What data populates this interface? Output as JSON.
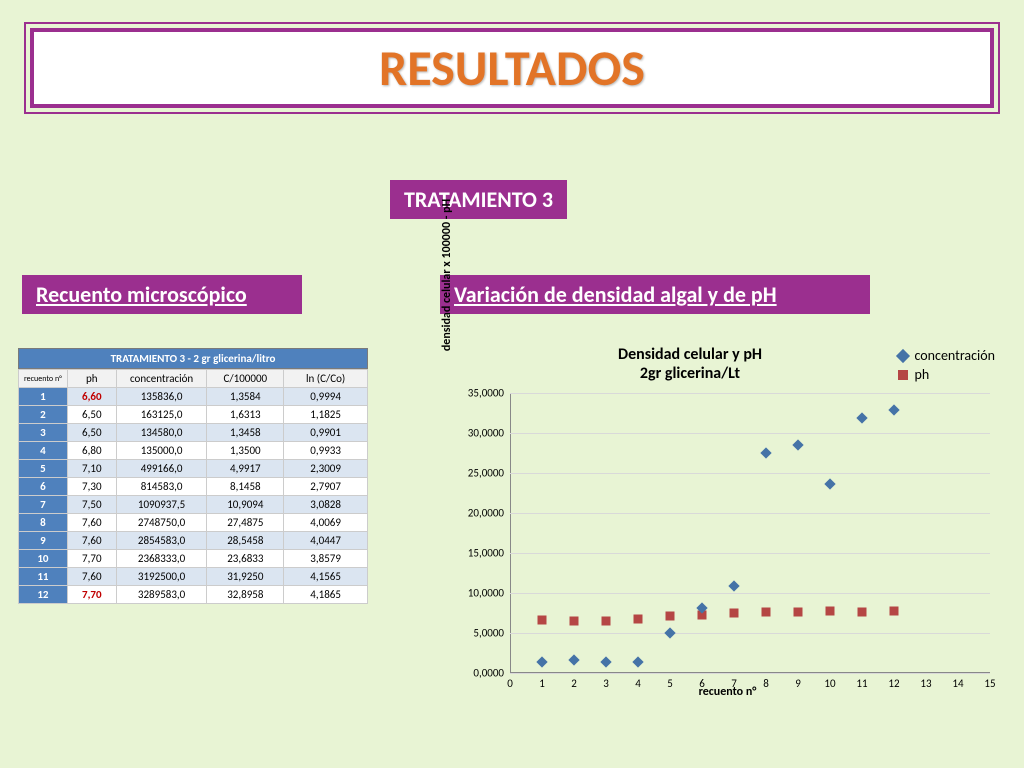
{
  "title": "RESULTADOS",
  "treatment_badge": "TRATAMIENTO 3",
  "section_left": "Recuento microscópico",
  "section_right": "Variación de densidad algal y de pH",
  "table": {
    "title": "TRATAMIENTO 3 - 2 gr glicerina/litro",
    "headers": [
      "recuento n°",
      "ph",
      "concentración",
      "C/100000",
      "ln (C/Co)"
    ],
    "rows": [
      {
        "n": "1",
        "ph": "6,60",
        "ph_red": true,
        "conc": "135836,0",
        "c": "1,3584",
        "ln": "0,9994"
      },
      {
        "n": "2",
        "ph": "6,50",
        "ph_red": false,
        "conc": "163125,0",
        "c": "1,6313",
        "ln": "1,1825"
      },
      {
        "n": "3",
        "ph": "6,50",
        "ph_red": false,
        "conc": "134580,0",
        "c": "1,3458",
        "ln": "0,9901"
      },
      {
        "n": "4",
        "ph": "6,80",
        "ph_red": false,
        "conc": "135000,0",
        "c": "1,3500",
        "ln": "0,9933"
      },
      {
        "n": "5",
        "ph": "7,10",
        "ph_red": false,
        "conc": "499166,0",
        "c": "4,9917",
        "ln": "2,3009"
      },
      {
        "n": "6",
        "ph": "7,30",
        "ph_red": false,
        "conc": "814583,0",
        "c": "8,1458",
        "ln": "2,7907"
      },
      {
        "n": "7",
        "ph": "7,50",
        "ph_red": false,
        "conc": "1090937,5",
        "c": "10,9094",
        "ln": "3,0828"
      },
      {
        "n": "8",
        "ph": "7,60",
        "ph_red": false,
        "conc": "2748750,0",
        "c": "27,4875",
        "ln": "4,0069"
      },
      {
        "n": "9",
        "ph": "7,60",
        "ph_red": false,
        "conc": "2854583,0",
        "c": "28,5458",
        "ln": "4,0447"
      },
      {
        "n": "10",
        "ph": "7,70",
        "ph_red": false,
        "conc": "2368333,0",
        "c": "23,6833",
        "ln": "3,8579"
      },
      {
        "n": "11",
        "ph": "7,60",
        "ph_red": false,
        "conc": "3192500,0",
        "c": "31,9250",
        "ln": "4,1565"
      },
      {
        "n": "12",
        "ph": "7,70",
        "ph_red": true,
        "conc": "3289583,0",
        "c": "32,8958",
        "ln": "4,1865"
      }
    ],
    "col_widths_pct": [
      14,
      14,
      26,
      22,
      24
    ]
  },
  "chart": {
    "type": "scatter",
    "title_line1": "Densidad celular y pH",
    "title_line2": "2gr glicerina/Lt",
    "ylabel": "densidad celular x 100000 - pH",
    "xlabel": "recuento n°",
    "xlim": [
      0,
      15
    ],
    "xtick_step": 1,
    "ylim": [
      0,
      35
    ],
    "ytick_step": 5,
    "ytick_labels": [
      "0,0000",
      "5,0000",
      "10,0000",
      "15,0000",
      "20,0000",
      "25,0000",
      "30,0000",
      "35,0000"
    ],
    "background_color": "#ffffff",
    "grid_color": "#d9d9d9",
    "legend": [
      {
        "label": "concentración",
        "marker": "diamond",
        "color": "#4573a7"
      },
      {
        "label": "ph",
        "marker": "square",
        "color": "#b54644"
      }
    ],
    "series_conc": {
      "color": "#4573a7",
      "marker": "diamond",
      "size": 8,
      "x": [
        1,
        2,
        3,
        4,
        5,
        6,
        7,
        8,
        9,
        10,
        11,
        12
      ],
      "y": [
        1.3584,
        1.6313,
        1.3458,
        1.35,
        4.9917,
        8.1458,
        10.9094,
        27.4875,
        28.5458,
        23.6833,
        31.925,
        32.8958
      ]
    },
    "series_ph": {
      "color": "#b54644",
      "marker": "square",
      "size": 9,
      "x": [
        1,
        2,
        3,
        4,
        5,
        6,
        7,
        8,
        9,
        10,
        11,
        12
      ],
      "y": [
        6.6,
        6.5,
        6.5,
        6.8,
        7.1,
        7.3,
        7.5,
        7.6,
        7.6,
        7.7,
        7.6,
        7.7
      ]
    }
  },
  "colors": {
    "page_bg": "#e8f4d4",
    "accent": "#9b2f8f",
    "title": "#e27427",
    "table_header": "#4f81bd",
    "row_band": "#dbe5f1",
    "ph_red": "#c00000"
  }
}
